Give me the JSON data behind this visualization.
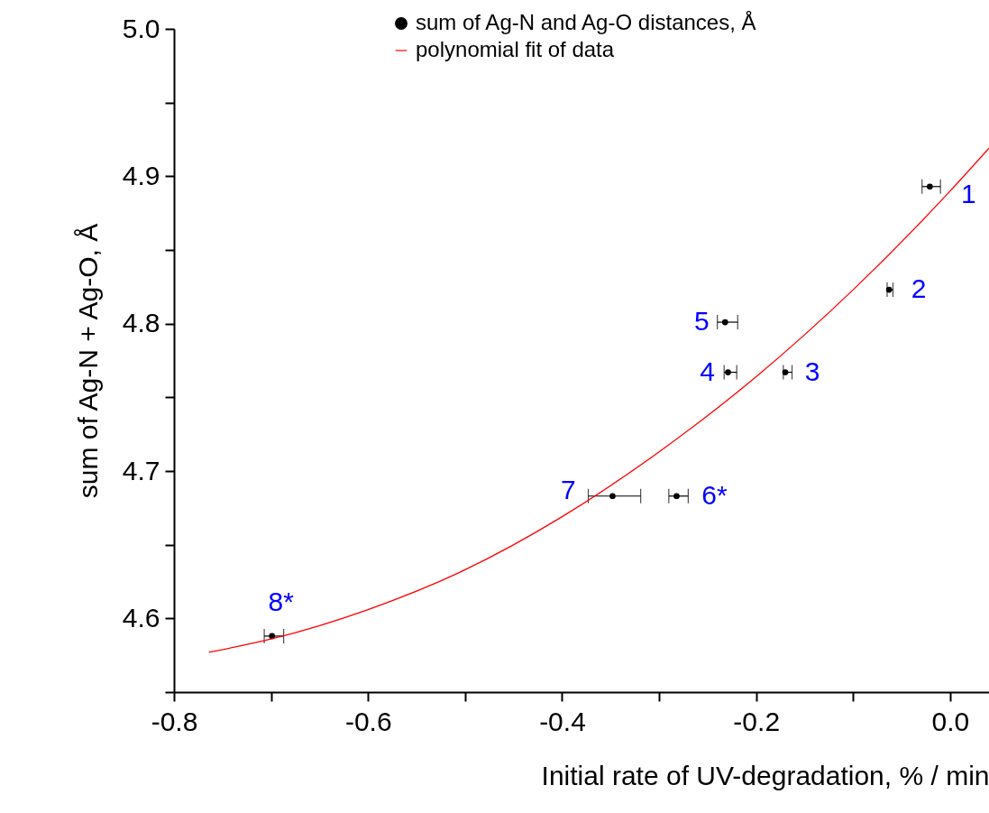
{
  "chart_data": {
    "type": "scatter",
    "xlabel": "Initial rate of UV-degradation, % / min",
    "ylabel": "sum of Ag-N + Ag-O, Å",
    "xlim": [
      -0.8,
      0.04
    ],
    "ylim": [
      4.55,
      5.0
    ],
    "xticks": [
      {
        "value": -0.8,
        "label": "-0.8"
      },
      {
        "value": -0.7,
        "label": null
      },
      {
        "value": -0.6,
        "label": "-0.6"
      },
      {
        "value": -0.5,
        "label": null
      },
      {
        "value": -0.4,
        "label": "-0.4"
      },
      {
        "value": -0.3,
        "label": null
      },
      {
        "value": -0.2,
        "label": "-0.2"
      },
      {
        "value": -0.1,
        "label": null
      },
      {
        "value": 0.0,
        "label": "0.0"
      }
    ],
    "yticks": [
      {
        "value": 4.55,
        "label": null
      },
      {
        "value": 4.6,
        "label": "4.6"
      },
      {
        "value": 4.65,
        "label": null
      },
      {
        "value": 4.7,
        "label": "4.7"
      },
      {
        "value": 4.75,
        "label": null
      },
      {
        "value": 4.8,
        "label": "4.8"
      },
      {
        "value": 4.85,
        "label": null
      },
      {
        "value": 4.9,
        "label": "4.9"
      },
      {
        "value": 4.95,
        "label": null
      },
      {
        "value": 5.0,
        "label": "5.0"
      }
    ],
    "legend": "top",
    "grid": false,
    "series": [
      {
        "name": "sum of Ag-N and Ag-O distances, Å",
        "marker": "circle",
        "color": "#000000",
        "x": [
          -0.021,
          -0.063,
          -0.17,
          -0.229,
          -0.232,
          -0.282,
          -0.348,
          -0.699
        ],
        "values": [
          4.893,
          4.823,
          4.767,
          4.767,
          4.801,
          4.683,
          4.683,
          4.588
        ],
        "xerrors": [
          [
            -0.029,
            -0.01
          ],
          [
            -0.065,
            -0.059
          ],
          [
            -0.172,
            -0.163
          ],
          [
            -0.233,
            -0.22
          ],
          [
            -0.24,
            -0.219
          ],
          [
            -0.29,
            -0.27
          ],
          [
            -0.373,
            -0.319
          ],
          [
            -0.707,
            -0.687
          ]
        ]
      },
      {
        "name": "polynomial fit of data",
        "type": "line",
        "color": "#ff0000",
        "x": [
          -0.764,
          -0.7,
          -0.6,
          -0.5,
          -0.4,
          -0.3,
          -0.2,
          -0.1,
          0.0,
          0.04
        ],
        "values": [
          4.577,
          4.586,
          4.606,
          4.633,
          4.669,
          4.713,
          4.764,
          4.823,
          4.89,
          4.919
        ]
      }
    ],
    "annotations": [
      {
        "text": "1",
        "x": -0.021,
        "y": 4.893
      },
      {
        "text": "2",
        "x": -0.063,
        "y": 4.823
      },
      {
        "text": "3",
        "x": -0.17,
        "y": 4.767
      },
      {
        "text": "4",
        "x": -0.229,
        "y": 4.767
      },
      {
        "text": "5",
        "x": -0.232,
        "y": 4.801
      },
      {
        "text": "6*",
        "x": -0.282,
        "y": 4.683
      },
      {
        "text": "7",
        "x": -0.348,
        "y": 4.683
      },
      {
        "text": "8*",
        "x": -0.699,
        "y": 4.588
      }
    ]
  }
}
